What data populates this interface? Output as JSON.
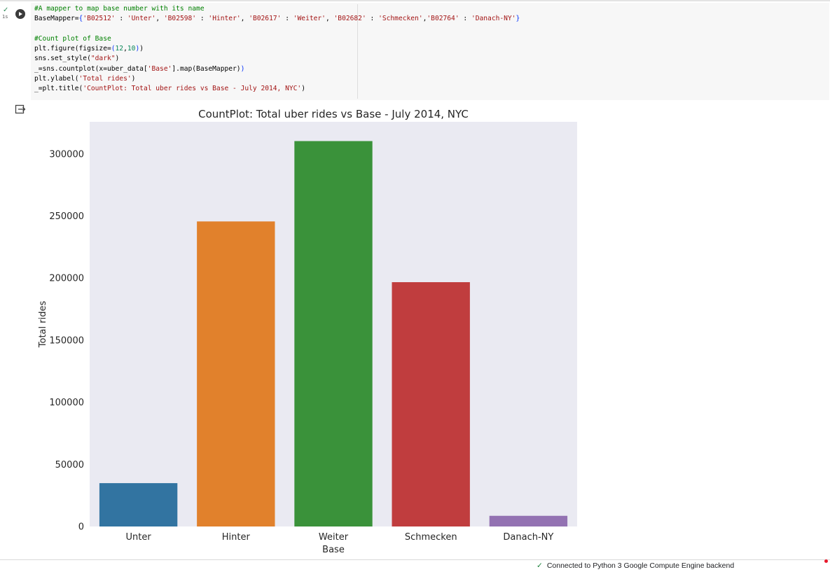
{
  "cell": {
    "exec_time": "1s",
    "code_lines": [
      [
        {
          "t": "#A mapper to map base number with its name",
          "c": "cmt"
        }
      ],
      [
        {
          "t": "BaseMapper=",
          "c": ""
        },
        {
          "t": "{",
          "c": "bracket"
        },
        {
          "t": "'B02512'",
          "c": "str"
        },
        {
          "t": " : ",
          "c": ""
        },
        {
          "t": "'Unter'",
          "c": "str"
        },
        {
          "t": ", ",
          "c": ""
        },
        {
          "t": "'B02598'",
          "c": "str"
        },
        {
          "t": " : ",
          "c": ""
        },
        {
          "t": "'Hinter'",
          "c": "str"
        },
        {
          "t": ", ",
          "c": ""
        },
        {
          "t": "'B02617'",
          "c": "str"
        },
        {
          "t": " : ",
          "c": ""
        },
        {
          "t": "'Weiter'",
          "c": "str"
        },
        {
          "t": ", ",
          "c": ""
        },
        {
          "t": "'B02682'",
          "c": "str"
        },
        {
          "t": " : ",
          "c": ""
        },
        {
          "t": "'Schmecken'",
          "c": "str"
        },
        {
          "t": ",",
          "c": ""
        },
        {
          "t": "'B02764'",
          "c": "str"
        },
        {
          "t": " : ",
          "c": ""
        },
        {
          "t": "'Danach-NY'",
          "c": "str"
        },
        {
          "t": "}",
          "c": "bracket"
        }
      ],
      [],
      [
        {
          "t": "#Count plot of Base",
          "c": "cmt"
        }
      ],
      [
        {
          "t": "plt.figure(figsize=",
          "c": ""
        },
        {
          "t": "(",
          "c": "bracket"
        },
        {
          "t": "12",
          "c": "num"
        },
        {
          "t": ",",
          "c": ""
        },
        {
          "t": "10",
          "c": "num"
        },
        {
          "t": ")",
          "c": "bracket"
        },
        {
          "t": ")",
          "c": ""
        }
      ],
      [
        {
          "t": "sns.set_style(",
          "c": ""
        },
        {
          "t": "\"dark\"",
          "c": "str"
        },
        {
          "t": ")",
          "c": ""
        }
      ],
      [
        {
          "t": "_=sns.countplot(x=uber_data[",
          "c": ""
        },
        {
          "t": "'Base'",
          "c": "str"
        },
        {
          "t": "].map(BaseMapper)",
          "c": ""
        },
        {
          "t": ")",
          "c": "bracket"
        }
      ],
      [
        {
          "t": "plt.ylabel(",
          "c": ""
        },
        {
          "t": "'Total rides'",
          "c": "str"
        },
        {
          "t": ")",
          "c": ""
        }
      ],
      [
        {
          "t": "_=plt.title(",
          "c": ""
        },
        {
          "t": "'CountPlot: Total uber rides vs Base - July 2014, NYC'",
          "c": "str"
        },
        {
          "t": ")",
          "c": ""
        }
      ]
    ]
  },
  "chart_data": {
    "type": "bar",
    "title": "CountPlot: Total uber rides vs Base - July 2014, NYC",
    "xlabel": "Base",
    "ylabel": "Total rides",
    "categories": [
      "Unter",
      "Hinter",
      "Weiter",
      "Schmecken",
      "Danach-NY"
    ],
    "values": [
      34900,
      245600,
      310300,
      196700,
      8600
    ],
    "colors": [
      "#3274a1",
      "#e1812c",
      "#3a923a",
      "#c03d3e",
      "#9372b2"
    ],
    "yticks": [
      0,
      50000,
      100000,
      150000,
      200000,
      250000,
      300000
    ],
    "ytick_labels": [
      "0",
      "50000",
      "100000",
      "150000",
      "200000",
      "250000",
      "300000"
    ],
    "ylim": [
      0,
      325800
    ],
    "grid": false,
    "background": "#eaeaf2"
  },
  "status_bar": {
    "text": "Connected to Python 3 Google Compute Engine backend",
    "check": "✓"
  }
}
